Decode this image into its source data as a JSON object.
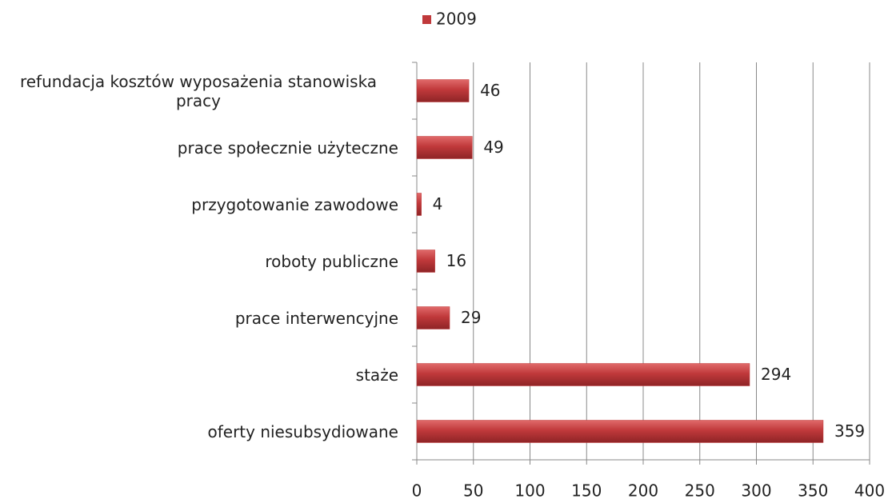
{
  "chart_data": {
    "type": "bar",
    "orientation": "horizontal",
    "categories": [
      "refundacja kosztów wyposażenia stanowiska pracy",
      "prace społecznie użyteczne",
      "przygotowanie zawodowe",
      "roboty publiczne",
      "prace interwencyjne",
      "staże",
      "oferty niesubsydiowane"
    ],
    "series": [
      {
        "name": "2009",
        "color": "#c0393b",
        "values": [
          46,
          49,
          4,
          16,
          29,
          294,
          359
        ]
      }
    ],
    "xlim": [
      0,
      400
    ],
    "xticks": [
      0,
      50,
      100,
      150,
      200,
      250,
      300,
      350,
      400
    ],
    "grid": true,
    "legend": "top"
  }
}
